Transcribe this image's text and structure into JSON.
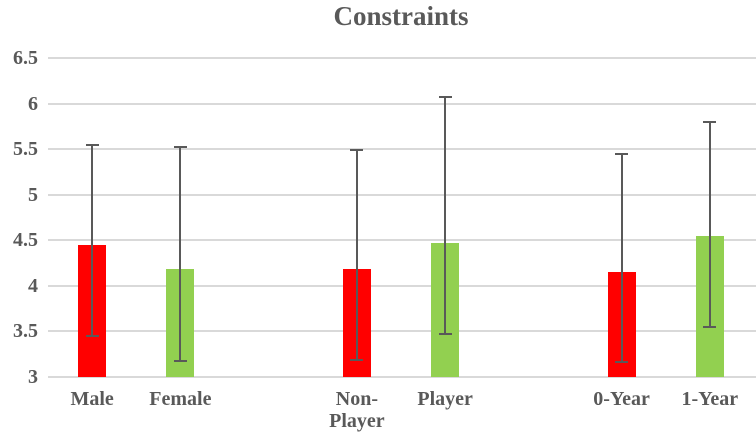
{
  "colors": {
    "background": "#FFFFFF",
    "bar_red": "#FF0000",
    "bar_green": "#92D050",
    "error_bar": "#595959",
    "gridline": "#D9D9D9",
    "axis_text": "#595959",
    "title_text": "#595959"
  },
  "chart_data": {
    "type": "bar",
    "title": "Constraints",
    "xlabel": "",
    "ylabel": "",
    "categories": [
      "Male",
      "Female",
      "Non-Player",
      "Player",
      "0-Year",
      "1-Year"
    ],
    "values": [
      4.45,
      4.19,
      4.19,
      4.47,
      4.15,
      4.55
    ],
    "error_high": [
      5.55,
      5.52,
      5.49,
      6.07,
      5.45,
      5.8
    ],
    "error_low": [
      3.45,
      3.18,
      3.19,
      3.47,
      3.16,
      3.55
    ],
    "bar_colors": [
      "#FF0000",
      "#92D050",
      "#FF0000",
      "#92D050",
      "#FF0000",
      "#92D050"
    ],
    "group_pairs": [
      [
        "Male",
        "Female"
      ],
      [
        "Non-Player",
        "Player"
      ],
      [
        "0-Year",
        "1-Year"
      ]
    ],
    "ylim": [
      3,
      6.5
    ],
    "ytick_step": 0.5,
    "ytick_labels": [
      "3",
      "3.5",
      "4",
      "4.5",
      "5",
      "5.5",
      "6",
      "6.5"
    ],
    "grid": true,
    "legend": false,
    "layout_hints": {
      "total_slots": 8,
      "slot_index": [
        0,
        1,
        3,
        4,
        6,
        7
      ]
    }
  }
}
